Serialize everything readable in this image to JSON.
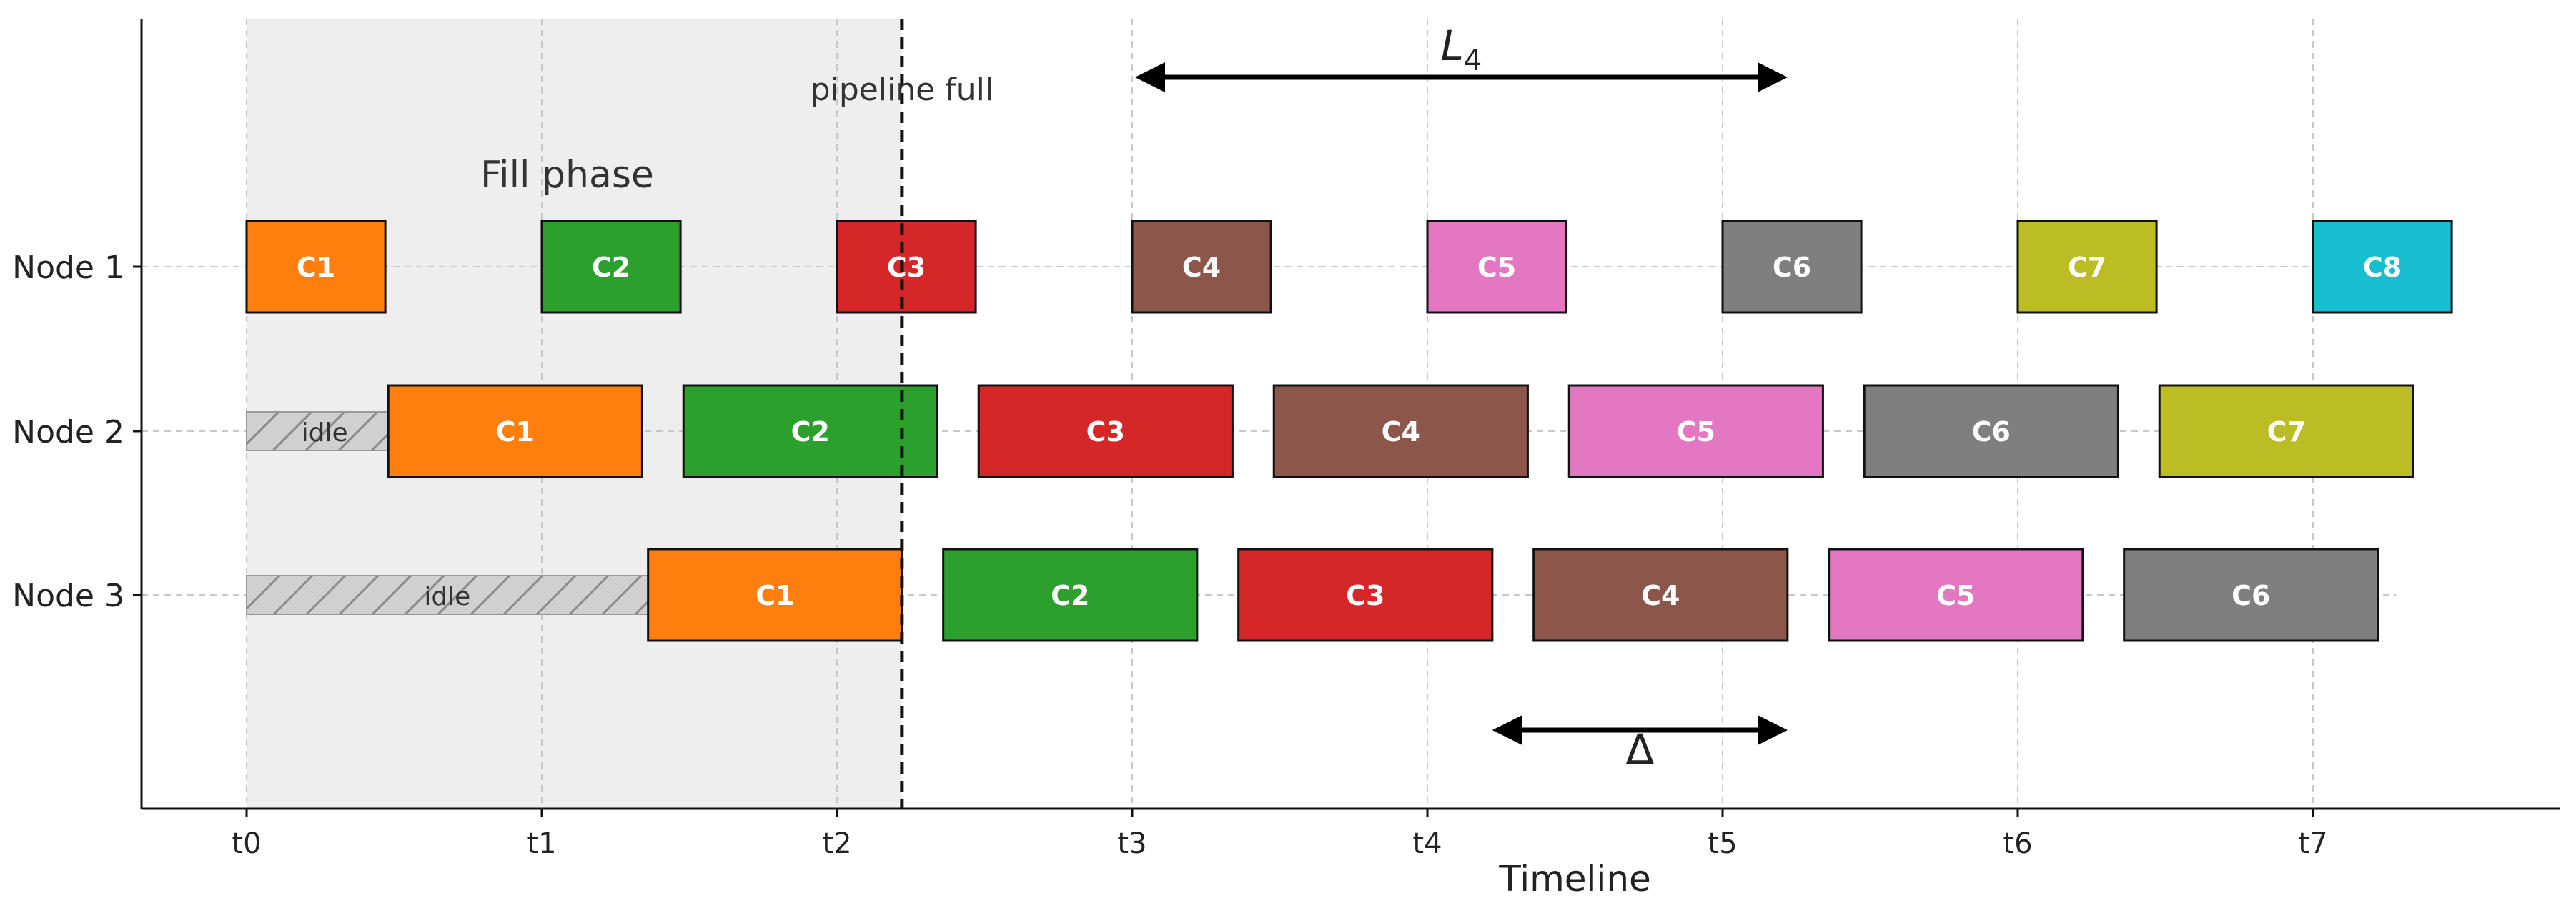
{
  "chart_data": {
    "type": "gantt",
    "xlabel": "Timeline",
    "ylabel": "",
    "xlim": [
      -0.36,
      7.84
    ],
    "ylim": [
      0.5,
      3.8
    ],
    "grid": true,
    "x_ticks": [
      {
        "value": 0,
        "label": "t0"
      },
      {
        "value": 1,
        "label": "t1"
      },
      {
        "value": 2,
        "label": "t2"
      },
      {
        "value": 3,
        "label": "t3"
      },
      {
        "value": 4,
        "label": "t4"
      },
      {
        "value": 5,
        "label": "t5"
      },
      {
        "value": 6,
        "label": "t6"
      },
      {
        "value": 7,
        "label": "t7"
      }
    ],
    "nodes": [
      {
        "label": "Node 1",
        "y": 3
      },
      {
        "label": "Node 2",
        "y": 2
      },
      {
        "label": "Node 3",
        "y": 1
      }
    ],
    "fill_phase": {
      "label": "Fill phase",
      "x_start": 0,
      "x_end": 2.22
    },
    "pipeline_full": {
      "label": "pipeline full",
      "x": 2.22
    },
    "colors": {
      "C1": "#ff7f0e",
      "C2": "#2ca02c",
      "C3": "#d62728",
      "C4": "#8c564b",
      "C5": "#e377c2",
      "C6": "#7f7f7f",
      "C7": "#bcbd22",
      "C8": "#17becf",
      "idle": "#d0d0d0",
      "fill_region": "#eeeeee"
    },
    "idle": [
      {
        "node": "Node 2",
        "y": 2,
        "start": 0,
        "end": 0.48,
        "label": "idle"
      },
      {
        "node": "Node 3",
        "y": 1,
        "start": 0,
        "end": 1.36,
        "label": "idle"
      }
    ],
    "tasks": [
      {
        "node": "Node 1",
        "y": 3,
        "label": "C1",
        "start": 0.0,
        "end": 0.47
      },
      {
        "node": "Node 1",
        "y": 3,
        "label": "C2",
        "start": 1.0,
        "end": 1.47
      },
      {
        "node": "Node 1",
        "y": 3,
        "label": "C3",
        "start": 2.0,
        "end": 2.47
      },
      {
        "node": "Node 1",
        "y": 3,
        "label": "C4",
        "start": 3.0,
        "end": 3.47
      },
      {
        "node": "Node 1",
        "y": 3,
        "label": "C5",
        "start": 4.0,
        "end": 4.47
      },
      {
        "node": "Node 1",
        "y": 3,
        "label": "C6",
        "start": 5.0,
        "end": 5.47
      },
      {
        "node": "Node 1",
        "y": 3,
        "label": "C7",
        "start": 6.0,
        "end": 6.47
      },
      {
        "node": "Node 1",
        "y": 3,
        "label": "C8",
        "start": 7.0,
        "end": 7.47
      },
      {
        "node": "Node 2",
        "y": 2,
        "label": "C1",
        "start": 0.48,
        "end": 1.34
      },
      {
        "node": "Node 2",
        "y": 2,
        "label": "C2",
        "start": 1.48,
        "end": 2.34
      },
      {
        "node": "Node 2",
        "y": 2,
        "label": "C3",
        "start": 2.48,
        "end": 3.34
      },
      {
        "node": "Node 2",
        "y": 2,
        "label": "C4",
        "start": 3.48,
        "end": 4.34
      },
      {
        "node": "Node 2",
        "y": 2,
        "label": "C5",
        "start": 4.48,
        "end": 5.34
      },
      {
        "node": "Node 2",
        "y": 2,
        "label": "C6",
        "start": 5.48,
        "end": 6.34
      },
      {
        "node": "Node 2",
        "y": 2,
        "label": "C7",
        "start": 6.48,
        "end": 7.34
      },
      {
        "node": "Node 3",
        "y": 1,
        "label": "C1",
        "start": 1.36,
        "end": 2.22
      },
      {
        "node": "Node 3",
        "y": 1,
        "label": "C2",
        "start": 2.36,
        "end": 3.22
      },
      {
        "node": "Node 3",
        "y": 1,
        "label": "C3",
        "start": 3.36,
        "end": 4.22
      },
      {
        "node": "Node 3",
        "y": 1,
        "label": "C4",
        "start": 4.36,
        "end": 5.22
      },
      {
        "node": "Node 3",
        "y": 1,
        "label": "C5",
        "start": 5.36,
        "end": 6.22
      },
      {
        "node": "Node 3",
        "y": 1,
        "label": "C6",
        "start": 6.36,
        "end": 7.22
      }
    ],
    "annotations": [
      {
        "name": "latency-arrow",
        "label_base": "L",
        "label_sub": "4",
        "x_start": 3.03,
        "x_end": 5.2,
        "y": 3.66,
        "label_y": 3.78
      },
      {
        "name": "delta-arrow",
        "label_base": "Δ",
        "label_sub": "",
        "x_start": 4.24,
        "x_end": 5.2,
        "y": 0.69,
        "label_y": 0.55
      }
    ]
  }
}
